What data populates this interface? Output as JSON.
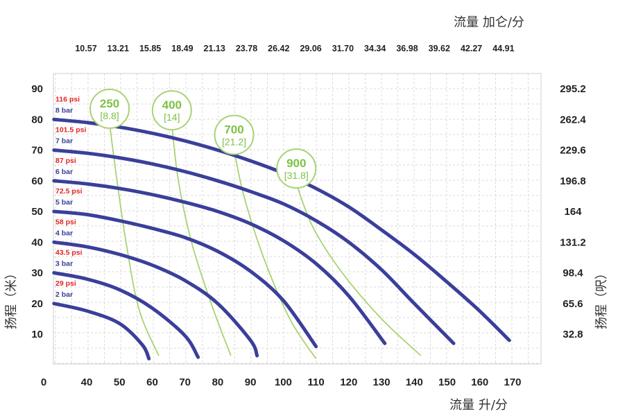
{
  "chart_data": {
    "type": "line",
    "title_top": "流量 加仑/分",
    "xlabel": "流量 升/分",
    "ylabel_left": "扬程（米）",
    "ylabel_right": "扬程（呎）",
    "x_ticks": [
      "0",
      "40",
      "50",
      "60",
      "70",
      "80",
      "90",
      "100",
      "110",
      "120",
      "130",
      "140",
      "150",
      "160",
      "170"
    ],
    "x_top_ticks": [
      "10.57",
      "13.21",
      "15.85",
      "18.49",
      "21.13",
      "23.78",
      "26.42",
      "29.06",
      "31.70",
      "34.34",
      "36.98",
      "39.62",
      "42.27",
      "44.91"
    ],
    "y_left_ticks": [
      "10",
      "20",
      "30",
      "40",
      "50",
      "60",
      "70",
      "80",
      "90"
    ],
    "y_right_ticks": [
      "32.8",
      "65.6",
      "98.4",
      "131.2",
      "164",
      "196.8",
      "229.6",
      "262.4",
      "295.2"
    ],
    "grid": true,
    "colors": {
      "pressure_curve": "#3a3f9a",
      "air_curve": "#a8d372",
      "psi_text": "#e32323",
      "bar_text": "#3a3f9a",
      "bubble": "#7cc242"
    },
    "pressure_series": [
      {
        "psi": "29 psi",
        "bar": "2 bar",
        "points": [
          [
            30,
            20
          ],
          [
            40,
            17.6
          ],
          [
            50,
            13.5
          ],
          [
            57,
            6.5
          ],
          [
            59,
            2
          ]
        ]
      },
      {
        "psi": "43.5 psi",
        "bar": "3 bar",
        "points": [
          [
            30,
            30
          ],
          [
            40,
            28
          ],
          [
            50,
            24.5
          ],
          [
            60,
            18.5
          ],
          [
            70,
            9.5
          ],
          [
            74,
            2.5
          ]
        ]
      },
      {
        "psi": "58 psi",
        "bar": "4 bar",
        "points": [
          [
            30,
            40
          ],
          [
            40,
            38.5
          ],
          [
            50,
            36
          ],
          [
            60,
            32.5
          ],
          [
            70,
            27.5
          ],
          [
            80,
            20
          ],
          [
            90,
            8
          ],
          [
            92,
            3
          ]
        ]
      },
      {
        "psi": "72.5 psi",
        "bar": "5 bar",
        "points": [
          [
            30,
            50
          ],
          [
            40,
            49
          ],
          [
            50,
            47
          ],
          [
            60,
            44.5
          ],
          [
            70,
            41.5
          ],
          [
            80,
            37
          ],
          [
            90,
            30.5
          ],
          [
            100,
            21
          ],
          [
            110,
            6
          ]
        ]
      },
      {
        "psi": "87 psi",
        "bar": "6 bar",
        "points": [
          [
            30,
            60
          ],
          [
            40,
            59
          ],
          [
            50,
            57.5
          ],
          [
            60,
            55.5
          ],
          [
            70,
            53
          ],
          [
            80,
            50
          ],
          [
            90,
            46
          ],
          [
            100,
            40.5
          ],
          [
            110,
            33
          ],
          [
            120,
            22.5
          ],
          [
            131,
            7
          ]
        ]
      },
      {
        "psi": "101.5 psi",
        "bar": "7 bar",
        "points": [
          [
            30,
            70
          ],
          [
            40,
            69
          ],
          [
            50,
            67.5
          ],
          [
            60,
            65.5
          ],
          [
            70,
            63
          ],
          [
            80,
            60
          ],
          [
            90,
            56.5
          ],
          [
            100,
            52.5
          ],
          [
            110,
            47
          ],
          [
            120,
            40
          ],
          [
            130,
            31
          ],
          [
            140,
            20
          ],
          [
            152,
            7
          ]
        ]
      },
      {
        "psi": "116 psi",
        "bar": "8 bar",
        "points": [
          [
            30,
            80
          ],
          [
            40,
            79
          ],
          [
            50,
            77.5
          ],
          [
            60,
            75.5
          ],
          [
            70,
            73
          ],
          [
            80,
            70
          ],
          [
            90,
            66.5
          ],
          [
            100,
            62.5
          ],
          [
            110,
            57.5
          ],
          [
            120,
            51.5
          ],
          [
            130,
            44
          ],
          [
            140,
            36
          ],
          [
            150,
            27
          ],
          [
            160,
            17.5
          ],
          [
            169,
            8
          ]
        ]
      }
    ],
    "air_consumption": [
      {
        "label": "250",
        "sub": "[8.8]",
        "points": [
          [
            47,
            78.5
          ],
          [
            49,
            62
          ],
          [
            52,
            40
          ],
          [
            56,
            18
          ],
          [
            62,
            3
          ]
        ]
      },
      {
        "label": "400",
        "sub": "[14]",
        "points": [
          [
            66,
            78
          ],
          [
            68,
            60
          ],
          [
            72,
            40
          ],
          [
            78,
            20
          ],
          [
            84,
            3
          ]
        ]
      },
      {
        "label": "700",
        "sub": "[21.2]",
        "points": [
          [
            85,
            70
          ],
          [
            88,
            55
          ],
          [
            94,
            35
          ],
          [
            102,
            15
          ],
          [
            110,
            2
          ]
        ]
      },
      {
        "label": "900",
        "sub": "[31.8]",
        "points": [
          [
            104,
            59
          ],
          [
            109,
            45
          ],
          [
            118,
            30
          ],
          [
            130,
            15
          ],
          [
            142,
            3
          ]
        ]
      }
    ]
  }
}
